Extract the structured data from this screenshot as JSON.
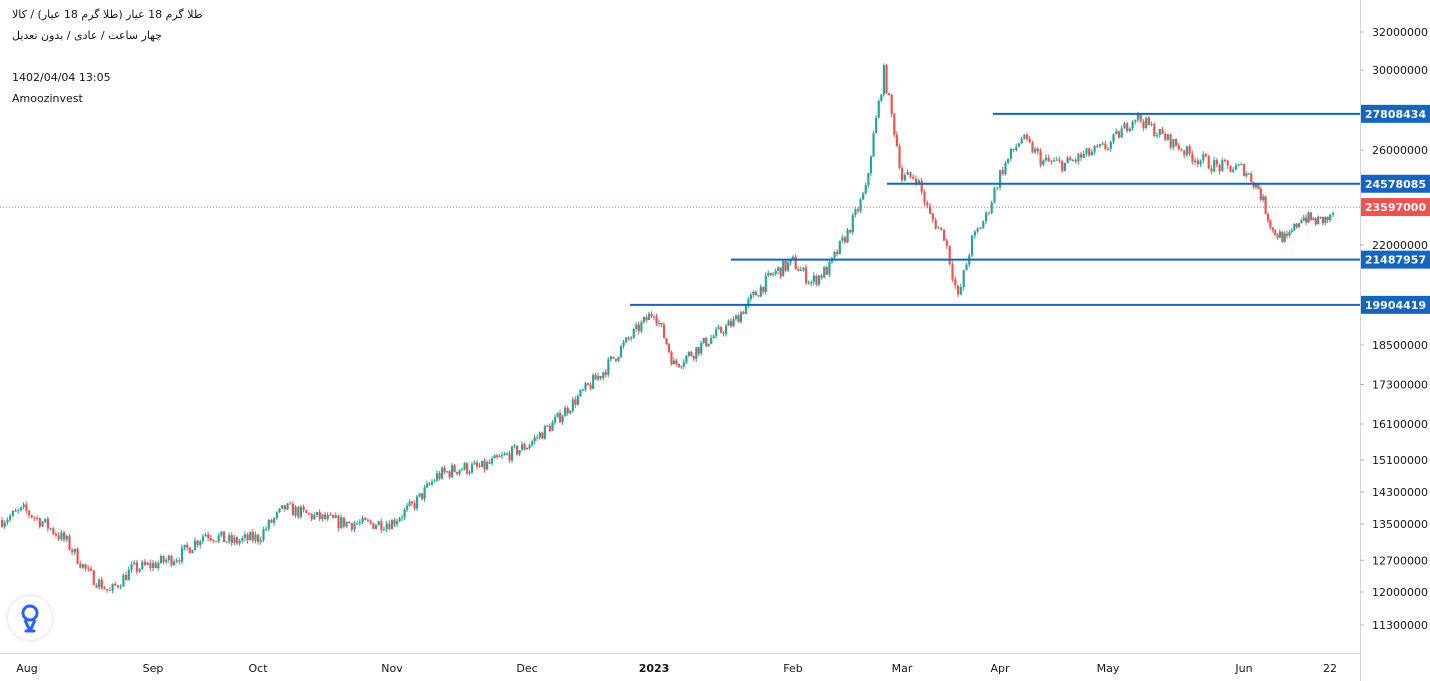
{
  "header": {
    "symbol_line": "طلا گرم 18 عیار (طلا گرم 18 عیار) / کالا",
    "detail_line": "چهار ساعت / عادی / بدون تعدیل",
    "datetime": "1402/04/04 13:05",
    "brand": "Amoozinvest"
  },
  "logo_icon": "tradingview-pin-icon",
  "colors": {
    "up": "#26a69a",
    "down": "#ef5350",
    "level_line": "#1565c0",
    "price_line": "#ef5350",
    "axis_text": "#131722"
  },
  "chart_data": {
    "type": "candlestick",
    "title": "",
    "x_tick_labels": [
      "Aug",
      "Sep",
      "Oct",
      "Nov",
      "Dec",
      "2023",
      "Feb",
      "Mar",
      "Apr",
      "May",
      "Jun",
      "22"
    ],
    "y_tick_labels": [
      "11300000",
      "12000000",
      "12700000",
      "13500000",
      "14300000",
      "15100000",
      "16100000",
      "17300000",
      "18500000",
      "22000000",
      "26000000",
      "30000000",
      "32000000"
    ],
    "ylim": [
      10800000,
      32800000
    ],
    "y_scale": "log",
    "close_path": [
      {
        "x": "Aug",
        "y": 13600000
      },
      {
        "x": "Aug",
        "y": 13850000
      },
      {
        "x": "Aug",
        "y": 13500000
      },
      {
        "x": "Aug",
        "y": 13100000
      },
      {
        "x": "Aug",
        "y": 12400000
      },
      {
        "x": "Aug",
        "y": 12000000
      },
      {
        "x": "Aug",
        "y": 12500000
      },
      {
        "x": "Sep",
        "y": 12600000
      },
      {
        "x": "Sep",
        "y": 12800000
      },
      {
        "x": "Sep",
        "y": 13300000
      },
      {
        "x": "Sep",
        "y": 13100000
      },
      {
        "x": "Oct",
        "y": 13200000
      },
      {
        "x": "Oct",
        "y": 13900000
      },
      {
        "x": "Oct",
        "y": 13700000
      },
      {
        "x": "Oct",
        "y": 13550000
      },
      {
        "x": "Oct",
        "y": 13500000
      },
      {
        "x": "Nov",
        "y": 13550000
      },
      {
        "x": "Nov",
        "y": 14000000
      },
      {
        "x": "Nov",
        "y": 14700000
      },
      {
        "x": "Nov",
        "y": 14900000
      },
      {
        "x": "Nov",
        "y": 14900000
      },
      {
        "x": "Nov",
        "y": 15200000
      },
      {
        "x": "Dec",
        "y": 15500000
      },
      {
        "x": "Dec",
        "y": 16100000
      },
      {
        "x": "Dec",
        "y": 16900000
      },
      {
        "x": "Dec",
        "y": 17700000
      },
      {
        "x": "Dec",
        "y": 18700000
      },
      {
        "x": "2023",
        "y": 19700000
      },
      {
        "x": "2023",
        "y": 17900000
      },
      {
        "x": "2023",
        "y": 18300000
      },
      {
        "x": "2023",
        "y": 18800000
      },
      {
        "x": "2023",
        "y": 19300000
      },
      {
        "x": "2023",
        "y": 20200000
      },
      {
        "x": "2023",
        "y": 21000000
      },
      {
        "x": "Feb",
        "y": 21400000
      },
      {
        "x": "Feb",
        "y": 20700000
      },
      {
        "x": "Feb",
        "y": 21200000
      },
      {
        "x": "Feb",
        "y": 22500000
      },
      {
        "x": "Feb",
        "y": 24300000
      },
      {
        "x": "Feb",
        "y": 29900000
      },
      {
        "x": "Mar",
        "y": 24800000
      },
      {
        "x": "Mar",
        "y": 24900000
      },
      {
        "x": "Mar",
        "y": 23200000
      },
      {
        "x": "Mar",
        "y": 22400000
      },
      {
        "x": "Mar",
        "y": 20100000
      },
      {
        "x": "Mar",
        "y": 22200000
      },
      {
        "x": "Mar",
        "y": 23200000
      },
      {
        "x": "Apr",
        "y": 25000000
      },
      {
        "x": "Apr",
        "y": 26600000
      },
      {
        "x": "Apr",
        "y": 25500000
      },
      {
        "x": "Apr",
        "y": 25400000
      },
      {
        "x": "Apr",
        "y": 25800000
      },
      {
        "x": "May",
        "y": 26200000
      },
      {
        "x": "May",
        "y": 27700000
      },
      {
        "x": "May",
        "y": 26700000
      },
      {
        "x": "May",
        "y": 25800000
      },
      {
        "x": "May",
        "y": 25300000
      },
      {
        "x": "Jun",
        "y": 25200000
      },
      {
        "x": "Jun",
        "y": 24400000
      },
      {
        "x": "Jun",
        "y": 22600000
      },
      {
        "x": "Jun",
        "y": 22200000
      },
      {
        "x": "Jun",
        "y": 23200000
      },
      {
        "x": "Jun",
        "y": 23000000
      },
      {
        "x": "22",
        "y": 23100000
      },
      {
        "x": "22",
        "y": 23597000
      }
    ],
    "levels": [
      {
        "label": "27808434",
        "value": 27808434
      },
      {
        "label": "24578085",
        "value": 24578085
      },
      {
        "label": "21487957",
        "value": 21487957
      },
      {
        "label": "19904419",
        "value": 19904419
      }
    ],
    "current_price": {
      "label": "23597000",
      "value": 23597000
    }
  }
}
